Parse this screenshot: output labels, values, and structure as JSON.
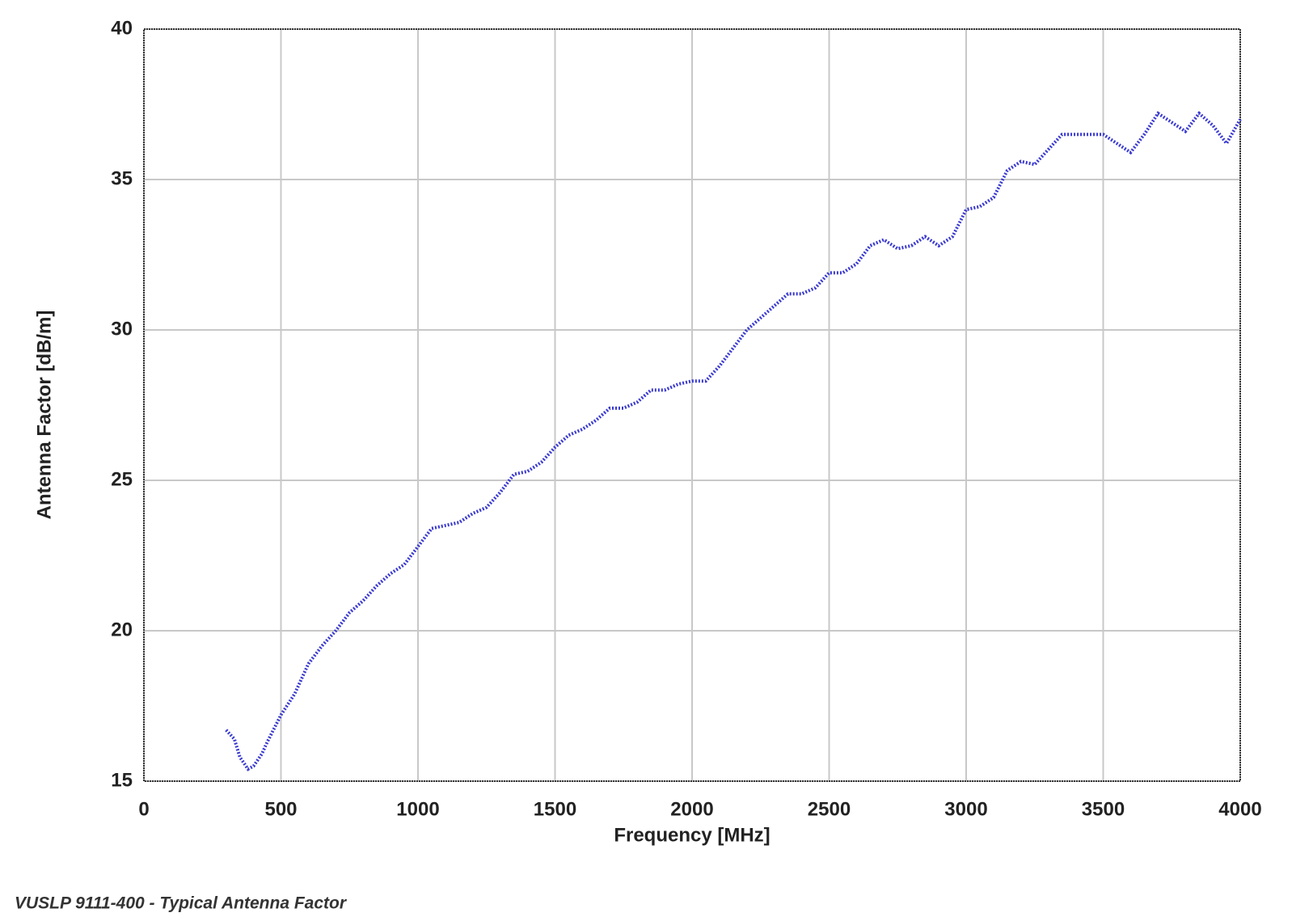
{
  "chart_data": {
    "type": "line",
    "xlabel": "Frequency [MHz]",
    "ylabel": "Antenna Factor [dB/m]",
    "caption": "VUSLP 9111-400 - Typical Antenna Factor",
    "xlim": [
      0,
      4000
    ],
    "ylim": [
      15,
      40
    ],
    "xticks": [
      0,
      500,
      1000,
      1500,
      2000,
      2500,
      3000,
      3500,
      4000
    ],
    "yticks": [
      15,
      20,
      25,
      30,
      35,
      40
    ],
    "grid": true,
    "x": [
      300,
      330,
      350,
      380,
      400,
      430,
      450,
      500,
      550,
      600,
      650,
      700,
      750,
      800,
      850,
      900,
      950,
      1000,
      1050,
      1100,
      1150,
      1200,
      1250,
      1300,
      1350,
      1400,
      1450,
      1500,
      1550,
      1600,
      1650,
      1700,
      1750,
      1800,
      1850,
      1900,
      1950,
      2000,
      2050,
      2100,
      2150,
      2200,
      2250,
      2300,
      2350,
      2400,
      2450,
      2500,
      2550,
      2600,
      2650,
      2700,
      2750,
      2800,
      2850,
      2900,
      2950,
      3000,
      3050,
      3100,
      3150,
      3200,
      3250,
      3300,
      3350,
      3400,
      3450,
      3500,
      3550,
      3600,
      3650,
      3700,
      3750,
      3800,
      3850,
      3900,
      3950,
      4000
    ],
    "series": [
      {
        "color": "#3a3ad0",
        "values": [
          16.7,
          16.4,
          15.8,
          15.4,
          15.5,
          15.9,
          16.3,
          17.2,
          17.9,
          18.9,
          19.5,
          20.0,
          20.6,
          21.0,
          21.5,
          21.9,
          22.2,
          22.8,
          23.4,
          23.5,
          23.6,
          23.9,
          24.1,
          24.6,
          25.2,
          25.3,
          25.6,
          26.1,
          26.5,
          26.7,
          27.0,
          27.4,
          27.4,
          27.6,
          28.0,
          28.0,
          28.2,
          28.3,
          28.3,
          28.8,
          29.4,
          30.0,
          30.4,
          30.8,
          31.2,
          31.2,
          31.4,
          31.9,
          31.9,
          32.2,
          32.8,
          33.0,
          32.7,
          32.8,
          33.1,
          32.8,
          33.1,
          34.0,
          34.1,
          34.4,
          35.3,
          35.6,
          35.5,
          36.0,
          36.5,
          36.5,
          36.5,
          36.5,
          36.2,
          35.9,
          36.5,
          37.2,
          36.9,
          36.6,
          37.2,
          36.8,
          36.2,
          37.0
        ]
      }
    ]
  }
}
